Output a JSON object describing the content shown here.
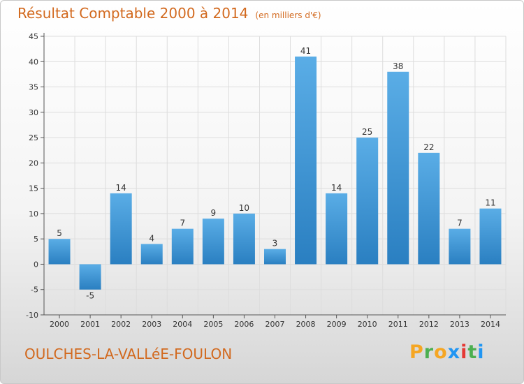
{
  "title": "Résultat Comptable 2000 à 2014",
  "unit": "(en milliers d'€)",
  "commune": "OULCHES-LA-VALLéE-FOULON",
  "brand": {
    "letters": [
      "P",
      "r",
      "o",
      "x",
      "i",
      "t",
      "i"
    ],
    "colors": [
      "#f5a623",
      "#4caf50",
      "#f5a623",
      "#2196f3",
      "#e53935",
      "#4caf50",
      "#2196f3"
    ]
  },
  "colors": {
    "bar_top": "#5aade6",
    "bar_bottom": "#2a7fc1",
    "grid": "#dddddd"
  },
  "chart_data": {
    "type": "bar",
    "categories": [
      "2000",
      "2001",
      "2002",
      "2003",
      "2004",
      "2005",
      "2006",
      "2007",
      "2008",
      "2009",
      "2010",
      "2011",
      "2012",
      "2013",
      "2014"
    ],
    "values": [
      5,
      -5,
      14,
      4,
      7,
      9,
      10,
      3,
      41,
      14,
      25,
      38,
      22,
      7,
      11
    ],
    "title": "Résultat Comptable 2000 à 2014",
    "ylim": [
      -10,
      45
    ],
    "yticks": [
      -10,
      -5,
      0,
      5,
      10,
      15,
      20,
      25,
      30,
      35,
      40,
      45
    ],
    "grid": true
  }
}
